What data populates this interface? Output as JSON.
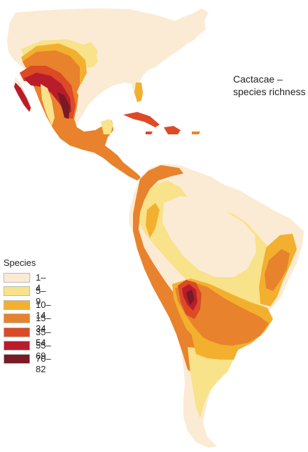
{
  "title": {
    "line1": "Cactacae –",
    "line2": "species richness"
  },
  "legend": {
    "title": "Species",
    "items": [
      {
        "label": "1–4",
        "color": "#fbebd4"
      },
      {
        "label": "5–9",
        "color": "#f8e28a"
      },
      {
        "label": "10–14",
        "color": "#f3b02e"
      },
      {
        "label": "15–34",
        "color": "#e8822c"
      },
      {
        "label": "35–54",
        "color": "#dc4a26"
      },
      {
        "label": "55–69",
        "color": "#b91d2c"
      },
      {
        "label": "70–82",
        "color": "#7a1a24"
      }
    ]
  }
}
